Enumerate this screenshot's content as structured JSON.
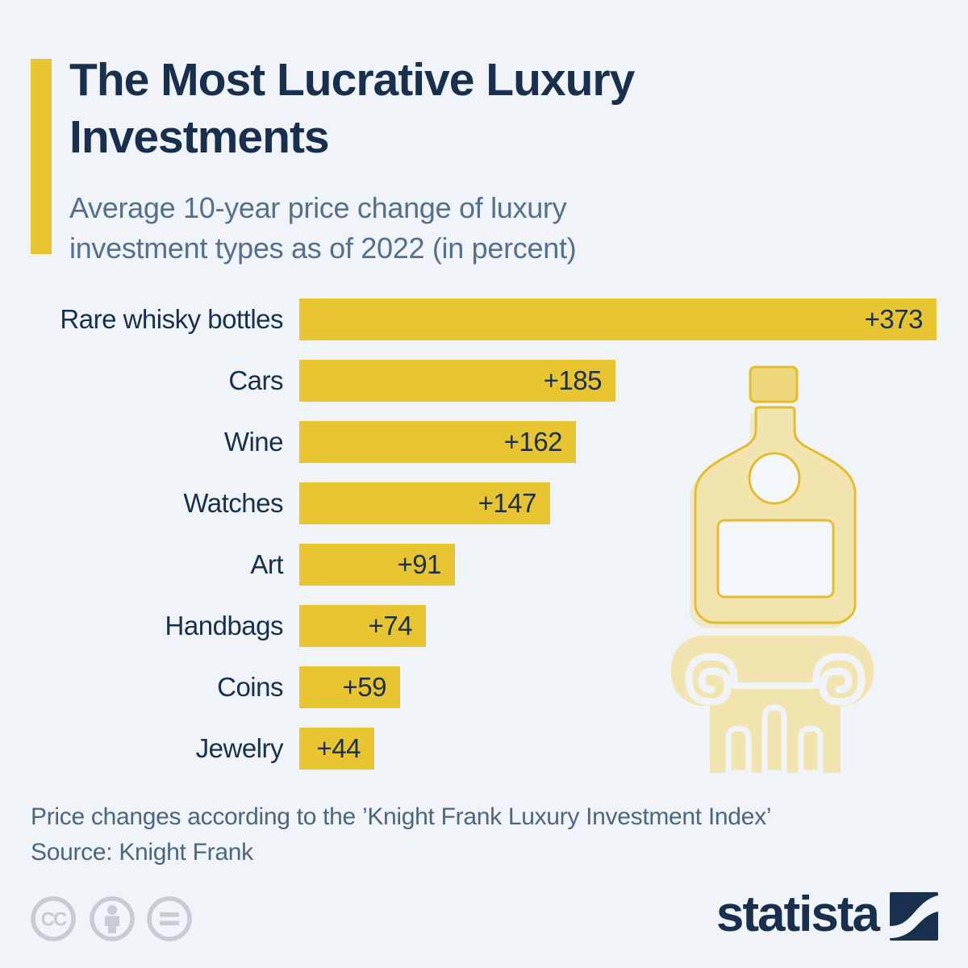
{
  "header": {
    "title_line1": "The Most Lucrative Luxury",
    "title_line2": "Investments",
    "subtitle_line1": "Average 10-year price change of luxury",
    "subtitle_line2": "investment types as of 2022 (in percent)"
  },
  "chart_data": {
    "type": "bar",
    "orientation": "horizontal",
    "categories": [
      "Rare whisky bottles",
      "Cars",
      "Wine",
      "Watches",
      "Art",
      "Handbags",
      "Coins",
      "Jewelry"
    ],
    "values": [
      373,
      185,
      162,
      147,
      91,
      74,
      59,
      44
    ],
    "value_labels": [
      "+373",
      "+185",
      "+162",
      "+147",
      "+91",
      "+74",
      "+59",
      "+44"
    ],
    "xlim": [
      0,
      373
    ],
    "bar_color": "#E9C431",
    "text_color": "#18304E",
    "value_label_position": "inside-end",
    "grid": false,
    "legend": false
  },
  "footer": {
    "note": "Price changes according to the ’Knight Frank Luxury Investment Index’",
    "source": "Source: Knight Frank"
  },
  "branding": {
    "logo_text": "statista",
    "license_icons": [
      "creative-commons",
      "attribution-person",
      "no-derivatives-equals"
    ]
  },
  "colors": {
    "background": "#F0F4F8",
    "accent_yellow": "#E9C431",
    "navy": "#18304E",
    "subtitle_gray": "#54708C",
    "footer_gray": "#4C667F",
    "license_gray": "#C5CCD4",
    "illustration_fill": "#F2E4AE",
    "illustration_outline": "#E3BD2D"
  },
  "decoration": {
    "illustration": "whisky-bottle-on-column"
  }
}
